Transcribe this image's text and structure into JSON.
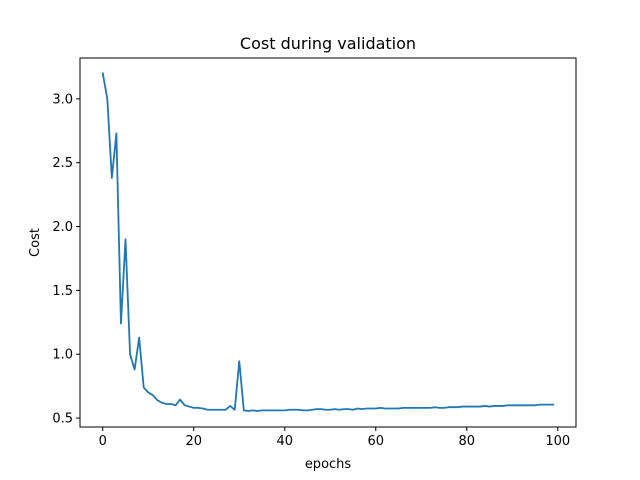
{
  "chart_data": {
    "type": "line",
    "title": "Cost during validation",
    "xlabel": "epochs",
    "ylabel": "Cost",
    "xlim": [
      -5,
      104
    ],
    "ylim": [
      0.43,
      3.32
    ],
    "xticks": [
      0,
      20,
      40,
      60,
      80,
      100
    ],
    "yticks": [
      0.5,
      1.0,
      1.5,
      2.0,
      2.5,
      3.0
    ],
    "xtick_labels": [
      "0",
      "20",
      "40",
      "60",
      "80",
      "100"
    ],
    "ytick_labels": [
      "0.5",
      "1.0",
      "1.5",
      "2.0",
      "2.5",
      "3.0"
    ],
    "grid": false,
    "line_color": "#1f77b4",
    "series": [
      {
        "x": [
          0,
          1,
          2,
          3,
          4,
          5,
          6,
          7,
          8,
          9,
          10,
          11,
          12,
          13,
          14,
          15,
          16,
          17,
          18,
          19,
          20,
          21,
          22,
          23,
          24,
          25,
          26,
          27,
          28,
          29,
          30,
          31,
          32,
          33,
          34,
          35,
          36,
          37,
          38,
          39,
          40,
          41,
          42,
          43,
          44,
          45,
          46,
          47,
          48,
          49,
          50,
          51,
          52,
          53,
          54,
          55,
          56,
          57,
          58,
          59,
          60,
          61,
          62,
          63,
          64,
          65,
          66,
          67,
          68,
          69,
          70,
          71,
          72,
          73,
          74,
          75,
          76,
          77,
          78,
          79,
          80,
          81,
          82,
          83,
          84,
          85,
          86,
          87,
          88,
          89,
          90,
          91,
          92,
          93,
          94,
          95,
          96,
          97,
          98,
          99
        ],
        "values": [
          3.2,
          3.0,
          2.38,
          2.73,
          1.24,
          1.9,
          1.0,
          0.88,
          1.13,
          0.74,
          0.7,
          0.68,
          0.64,
          0.62,
          0.61,
          0.61,
          0.6,
          0.645,
          0.6,
          0.59,
          0.58,
          0.58,
          0.575,
          0.565,
          0.565,
          0.565,
          0.565,
          0.565,
          0.595,
          0.565,
          0.945,
          0.56,
          0.555,
          0.56,
          0.555,
          0.56,
          0.56,
          0.56,
          0.56,
          0.56,
          0.56,
          0.565,
          0.565,
          0.565,
          0.56,
          0.56,
          0.565,
          0.57,
          0.57,
          0.565,
          0.565,
          0.57,
          0.565,
          0.57,
          0.57,
          0.565,
          0.575,
          0.57,
          0.575,
          0.575,
          0.575,
          0.58,
          0.575,
          0.575,
          0.575,
          0.575,
          0.58,
          0.58,
          0.58,
          0.58,
          0.58,
          0.58,
          0.58,
          0.585,
          0.58,
          0.58,
          0.585,
          0.585,
          0.585,
          0.59,
          0.59,
          0.59,
          0.59,
          0.59,
          0.595,
          0.59,
          0.595,
          0.595,
          0.595,
          0.6,
          0.6,
          0.6,
          0.6,
          0.6,
          0.6,
          0.6,
          0.605,
          0.605,
          0.605,
          0.605
        ]
      }
    ]
  }
}
